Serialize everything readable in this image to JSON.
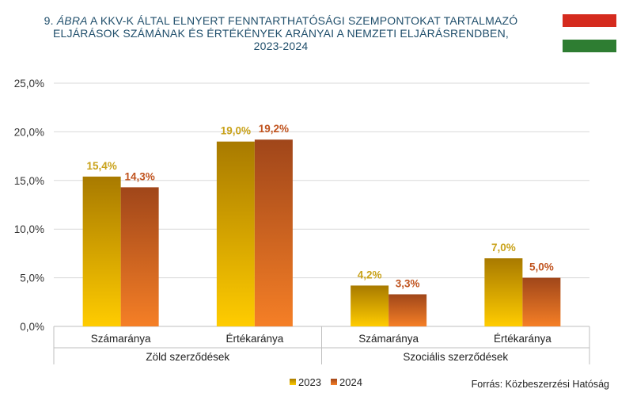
{
  "title": {
    "prefix": "9. ",
    "italic": "ÁBRA",
    "line1_rest": " A KKV-K ÁLTAL ELNYERT FENNTARTHATÓSÁGI SZEMPONTOKAT TARTALMAZÓ",
    "line2": "ELJÁRÁSOK SZÁMÁNAK ÉS ÉRTÉKÉNYEK ARÁNYAI A NEMZETI ELJÁRÁSRENDBEN,",
    "line3": "2023-2024"
  },
  "flag": {
    "colors": [
      "#d52b1e",
      "#ffffff",
      "#2e7d32"
    ]
  },
  "source": "Forrás: Közbeszerzési Hatóság",
  "colors": {
    "s2023_top": "#a87a00",
    "s2023_bottom": "#ffcc00",
    "s2024_top": "#a0461a",
    "s2024_bottom": "#f57f26",
    "label2023": "#c9a21a",
    "label2024": "#c0531e",
    "grid": "#d9d9d9",
    "axis": "#bfbfbf"
  },
  "chart_data": {
    "type": "bar",
    "groups": [
      "Zöld szerződések",
      "Szociális szerződések"
    ],
    "categories": [
      "Számaránya",
      "Értékaránya",
      "Számaránya",
      "Értékaránya"
    ],
    "category_group": [
      0,
      0,
      1,
      1
    ],
    "series": [
      {
        "name": "2023",
        "values": [
          15.4,
          19.0,
          4.2,
          7.0
        ],
        "labels": [
          "15,4%",
          "19,0%",
          "4,2%",
          "7,0%"
        ]
      },
      {
        "name": "2024",
        "values": [
          14.3,
          19.2,
          3.3,
          5.0
        ],
        "labels": [
          "14,3%",
          "19,2%",
          "3,3%",
          "5,0%"
        ]
      }
    ],
    "ylim": [
      0,
      25
    ],
    "yticks": [
      0,
      5,
      10,
      15,
      20,
      25
    ],
    "ytick_labels": [
      "0,0%",
      "5,0%",
      "10,0%",
      "15,0%",
      "20,0%",
      "25,0%"
    ],
    "grid": true,
    "legend": "bottom"
  }
}
